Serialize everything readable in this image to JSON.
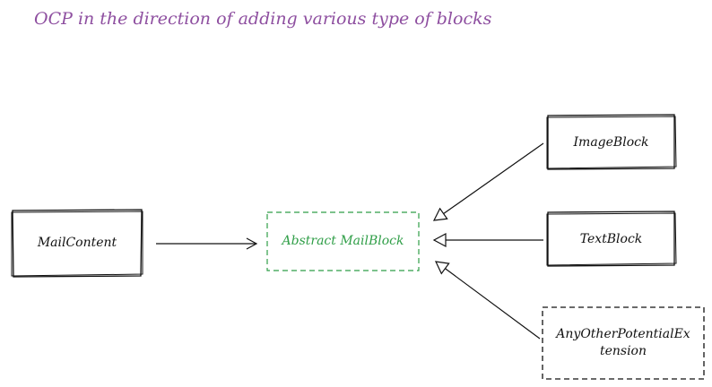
{
  "title": "OCP in the direction of adding various type of blocks",
  "colors": {
    "title": "#8e4fa0",
    "abstract": "#2f9e47",
    "stroke": "#111111"
  },
  "boxes": {
    "mail_content": "MailContent",
    "abstract_block": "Abstract MailBlock",
    "image_block": "ImageBlock",
    "text_block": "TextBlock",
    "other_extension_line1": "AnyOtherPotentialEx",
    "other_extension_line2": "tension"
  }
}
